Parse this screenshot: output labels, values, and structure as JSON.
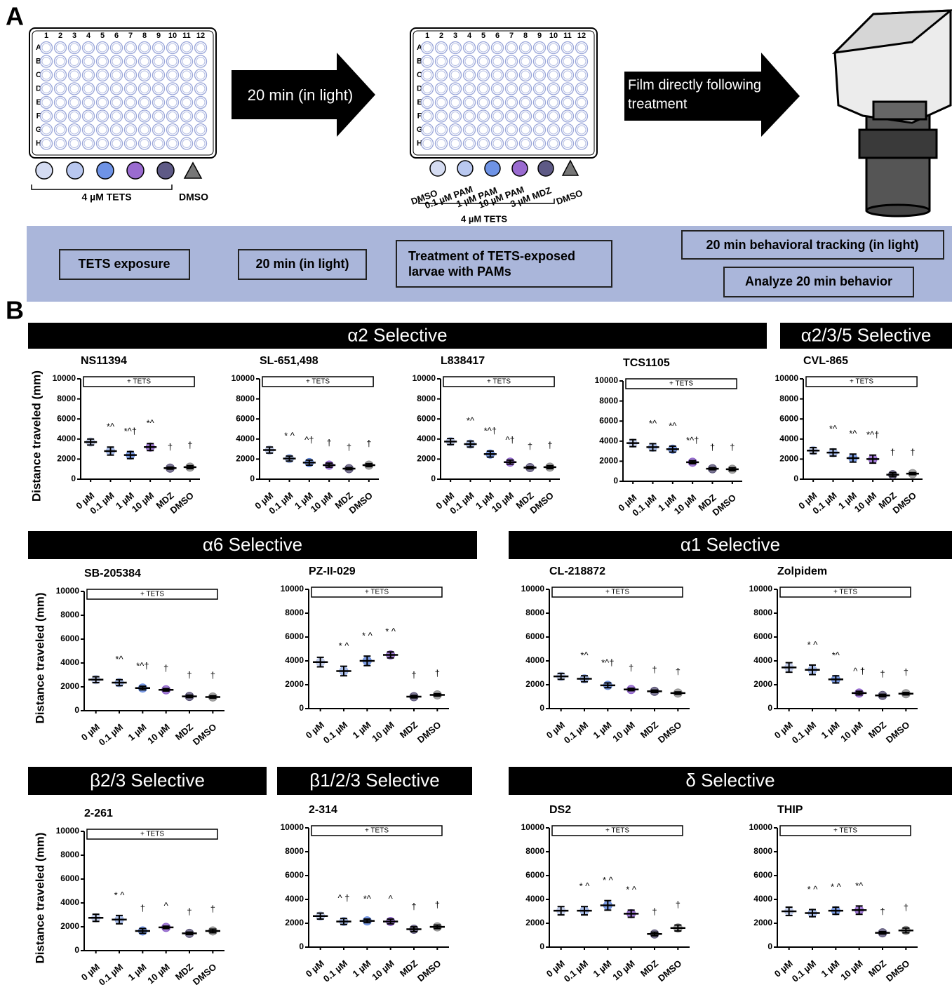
{
  "panel_a": {
    "label": "A",
    "plate_columns": [
      "1",
      "2",
      "3",
      "4",
      "5",
      "6",
      "7",
      "8",
      "9",
      "10",
      "11",
      "12"
    ],
    "plate_rows": [
      "A",
      "B",
      "C",
      "D",
      "E",
      "F",
      "G",
      "H"
    ],
    "plate1_legend": {
      "tets": "4 µM TETS",
      "dmso": "DMSO"
    },
    "arrow1": "20 min (in light)",
    "plate2_legend": {
      "wells": [
        "DMSO",
        "0.1 µM PAM",
        "1 µM PAM",
        "10 µM PAM",
        "3 µM MDZ",
        "DMSO"
      ],
      "tets": "4 µM TETS"
    },
    "arrow2": [
      "Film directly following",
      "treatment"
    ],
    "timeline": {
      "tets_exposure": "TETS exposure",
      "wait": "20 min (in light)",
      "treatment": [
        "Treatment of TETS-exposed",
        "larvae  with PAMs"
      ],
      "tracking": "20 min behavioral tracking (in light)",
      "analyze": "Analyze 20 min behavior"
    }
  },
  "panel_b": {
    "label": "B",
    "groups": [
      "α2 Selective",
      "α2/3/5 Selective",
      "α6 Selective",
      "α1 Selective",
      "β2/3 Selective",
      "β1/2/3 Selective",
      "δ Selective"
    ]
  },
  "chart_data": [
    {
      "type": "dot",
      "title": "NS11394",
      "y_label": "Distance traveled (mm)",
      "tets_label": "+ TETS",
      "categories": [
        "0 µM",
        "0.1 µM",
        "1 µM",
        "10 µM",
        "MDZ",
        "DMSO"
      ],
      "colors": [
        "#b9c6e8",
        "#97afe6",
        "#5f86dd",
        "#8b5cc9",
        "#5b5579",
        "#8f8f8f"
      ],
      "values": [
        3700,
        2800,
        2400,
        3200,
        1100,
        1200
      ],
      "errors": [
        300,
        400,
        350,
        350,
        100,
        150
      ],
      "annotations": [
        null,
        "*^",
        "*^†",
        "*^",
        "†",
        "†"
      ],
      "ylim": [
        0,
        10000
      ],
      "yticks": [
        0,
        2000,
        4000,
        6000,
        8000,
        10000
      ]
    },
    {
      "type": "dot",
      "title": "SL-651,498",
      "tets_label": "+ TETS",
      "categories": [
        "0 µM",
        "0.1 µM",
        "1 µM",
        "10 µM",
        "MDZ",
        "DMSO"
      ],
      "colors": [
        "#b9c6e8",
        "#97afe6",
        "#5f86dd",
        "#8b5cc9",
        "#5b5579",
        "#8f8f8f"
      ],
      "values": [
        2900,
        2050,
        1650,
        1400,
        1050,
        1400
      ],
      "errors": [
        300,
        250,
        250,
        200,
        100,
        150
      ],
      "annotations": [
        null,
        "* ^",
        "^†",
        "†",
        "†",
        "†"
      ],
      "ylim": [
        0,
        10000
      ],
      "yticks": [
        0,
        2000,
        4000,
        6000,
        8000,
        10000
      ]
    },
    {
      "type": "dot",
      "title": "L838417",
      "tets_label": "+ TETS",
      "categories": [
        "0 µM",
        "0.1 µM",
        "1 µM",
        "10 µM",
        "MDZ",
        "DMSO"
      ],
      "colors": [
        "#b9c6e8",
        "#97afe6",
        "#5f86dd",
        "#8b5cc9",
        "#5b5579",
        "#8f8f8f"
      ],
      "values": [
        3750,
        3500,
        2500,
        1700,
        1150,
        1200
      ],
      "errors": [
        300,
        300,
        300,
        200,
        100,
        150
      ],
      "annotations": [
        null,
        "*^",
        "*^†",
        "^†",
        "†",
        "†"
      ],
      "ylim": [
        0,
        10000
      ],
      "yticks": [
        0,
        2000,
        4000,
        6000,
        8000,
        10000
      ]
    },
    {
      "type": "dot",
      "title": "TCS1105",
      "tets_label": "+ TETS",
      "categories": [
        "0 µM",
        "0.1 µM",
        "1 µM",
        "10 µM",
        "MDZ",
        "DMSO"
      ],
      "colors": [
        "#b9c6e8",
        "#97afe6",
        "#5f86dd",
        "#8b5cc9",
        "#5b5579",
        "#8f8f8f"
      ],
      "values": [
        3800,
        3400,
        3200,
        1900,
        1250,
        1200
      ],
      "errors": [
        350,
        350,
        300,
        150,
        100,
        150
      ],
      "annotations": [
        null,
        "*^",
        "*^",
        "*^†",
        "†",
        "†"
      ],
      "ylim": [
        0,
        10000
      ],
      "yticks": [
        0,
        2000,
        4000,
        6000,
        8000,
        10000
      ]
    },
    {
      "type": "dot",
      "title": "CVL-865",
      "tets_label": "+ TETS",
      "categories": [
        "0 µM",
        "0.1 µM",
        "1 µM",
        "10 µM",
        "MDZ",
        "DMSO"
      ],
      "colors": [
        "#b9c6e8",
        "#97afe6",
        "#5f86dd",
        "#8b5cc9",
        "#5b5579",
        "#8f8f8f"
      ],
      "values": [
        2850,
        2650,
        2100,
        2000,
        450,
        550
      ],
      "errors": [
        300,
        350,
        400,
        400,
        200,
        100
      ],
      "annotations": [
        null,
        "*^",
        "*^",
        "*^†",
        "†",
        "†"
      ],
      "ylim": [
        0,
        10000
      ],
      "yticks": [
        0,
        2000,
        4000,
        6000,
        8000,
        10000
      ]
    },
    {
      "type": "dot",
      "title": "SB-205384",
      "y_label": "Distance traveled (mm)",
      "tets_label": "+ TETS",
      "categories": [
        "0 µM",
        "0.1 µM",
        "1 µM",
        "10 µM",
        "MDZ",
        "DMSO"
      ],
      "colors": [
        "#b9c6e8",
        "#97afe6",
        "#5f86dd",
        "#8b5cc9",
        "#5b5579",
        "#8f8f8f"
      ],
      "values": [
        2600,
        2350,
        1900,
        1750,
        1200,
        1150
      ],
      "errors": [
        250,
        250,
        150,
        100,
        100,
        100
      ],
      "annotations": [
        null,
        "*^",
        "*^†",
        "†",
        "†",
        "†"
      ],
      "ylim": [
        0,
        10000
      ],
      "yticks": [
        0,
        2000,
        4000,
        6000,
        8000,
        10000
      ]
    },
    {
      "type": "dot",
      "title": "PZ-II-029",
      "tets_label": "+ TETS",
      "categories": [
        "0 µM",
        "0.1 µM",
        "1 µM",
        "10 µM",
        "MDZ",
        "DMSO"
      ],
      "colors": [
        "#b9c6e8",
        "#97afe6",
        "#5f86dd",
        "#8b5cc9",
        "#5b5579",
        "#8f8f8f"
      ],
      "values": [
        3900,
        3150,
        4000,
        4500,
        1000,
        1150
      ],
      "errors": [
        400,
        400,
        400,
        250,
        100,
        100
      ],
      "annotations": [
        null,
        "* ^",
        "* ^",
        "* ^",
        "†",
        "†"
      ],
      "ylim": [
        0,
        10000
      ],
      "yticks": [
        0,
        2000,
        4000,
        6000,
        8000,
        10000
      ]
    },
    {
      "type": "dot",
      "title": "CL-218872",
      "tets_label": "+ TETS",
      "categories": [
        "0 µM",
        "0.1 µM",
        "1 µM",
        "10 µM",
        "MDZ",
        "DMSO"
      ],
      "colors": [
        "#b9c6e8",
        "#97afe6",
        "#5f86dd",
        "#8b5cc9",
        "#5b5579",
        "#8f8f8f"
      ],
      "values": [
        2700,
        2500,
        1950,
        1600,
        1450,
        1300
      ],
      "errors": [
        250,
        250,
        200,
        100,
        100,
        100
      ],
      "annotations": [
        null,
        "*^",
        "*^†",
        "†",
        "†",
        "†"
      ],
      "ylim": [
        0,
        10000
      ],
      "yticks": [
        0,
        2000,
        4000,
        6000,
        8000,
        10000
      ]
    },
    {
      "type": "dot",
      "title": "Zolpidem",
      "tets_label": "+ TETS",
      "categories": [
        "0 µM",
        "0.1 µM",
        "1 µM",
        "10 µM",
        "MDZ",
        "DMSO"
      ],
      "colors": [
        "#b9c6e8",
        "#97afe6",
        "#5f86dd",
        "#8b5cc9",
        "#5b5579",
        "#8f8f8f"
      ],
      "values": [
        3450,
        3250,
        2450,
        1300,
        1100,
        1250
      ],
      "errors": [
        400,
        400,
        300,
        150,
        100,
        100
      ],
      "annotations": [
        null,
        "* ^",
        "*^",
        "^ †",
        "†",
        "†"
      ],
      "ylim": [
        0,
        10000
      ],
      "yticks": [
        0,
        2000,
        4000,
        6000,
        8000,
        10000
      ]
    },
    {
      "type": "dot",
      "title": "2-261",
      "y_label": "Distance traveled (mm)",
      "tets_label": "+ TETS",
      "categories": [
        "0 µM",
        "0.1 µM",
        "1 µM",
        "10 µM",
        "MDZ",
        "DMSO"
      ],
      "colors": [
        "#b9c6e8",
        "#97afe6",
        "#5f86dd",
        "#8b5cc9",
        "#5b5579",
        "#8f8f8f"
      ],
      "values": [
        2750,
        2600,
        1650,
        1950,
        1450,
        1650
      ],
      "errors": [
        300,
        350,
        200,
        100,
        100,
        150
      ],
      "annotations": [
        null,
        "* ^",
        "†",
        "^",
        "†",
        "†"
      ],
      "ylim": [
        0,
        10000
      ],
      "yticks": [
        0,
        2000,
        4000,
        6000,
        8000,
        10000
      ]
    },
    {
      "type": "dot",
      "title": "2-314",
      "tets_label": "+ TETS",
      "categories": [
        "0 µM",
        "0.1 µM",
        "1 µM",
        "10 µM",
        "MDZ",
        "DMSO"
      ],
      "colors": [
        "#b9c6e8",
        "#97afe6",
        "#5f86dd",
        "#8b5cc9",
        "#5b5579",
        "#8f8f8f"
      ],
      "values": [
        2600,
        2150,
        2200,
        2150,
        1500,
        1700
      ],
      "errors": [
        250,
        250,
        150,
        200,
        200,
        150
      ],
      "annotations": [
        null,
        "^ †",
        "*^",
        "^",
        "†",
        "†"
      ],
      "ylim": [
        0,
        10000
      ],
      "yticks": [
        0,
        2000,
        4000,
        6000,
        8000,
        10000
      ]
    },
    {
      "type": "dot",
      "title": "DS2",
      "tets_label": "+ TETS",
      "categories": [
        "0 µM",
        "0.1 µM",
        "1 µM",
        "10 µM",
        "MDZ",
        "DMSO"
      ],
      "colors": [
        "#b9c6e8",
        "#97afe6",
        "#5f86dd",
        "#8b5cc9",
        "#5b5579",
        "#8f8f8f"
      ],
      "values": [
        3050,
        3050,
        3500,
        2800,
        1100,
        1600
      ],
      "errors": [
        350,
        350,
        400,
        300,
        150,
        250
      ],
      "annotations": [
        null,
        "* ^",
        "* ^",
        "* ^",
        "†",
        "†"
      ],
      "ylim": [
        0,
        10000
      ],
      "yticks": [
        0,
        2000,
        4000,
        6000,
        8000,
        10000
      ]
    },
    {
      "type": "dot",
      "title": "THIP",
      "tets_label": "+ TETS",
      "categories": [
        "0 µM",
        "0.1 µM",
        "1 µM",
        "10 µM",
        "MDZ",
        "DMSO"
      ],
      "colors": [
        "#b9c6e8",
        "#97afe6",
        "#5f86dd",
        "#8b5cc9",
        "#5b5579",
        "#8f8f8f"
      ],
      "values": [
        3000,
        2850,
        3050,
        3100,
        1200,
        1400
      ],
      "errors": [
        350,
        300,
        300,
        350,
        100,
        200
      ],
      "annotations": [
        null,
        "* ^",
        "* ^",
        "*^",
        "†",
        "†"
      ],
      "ylim": [
        0,
        10000
      ],
      "yticks": [
        0,
        2000,
        4000,
        6000,
        8000,
        10000
      ]
    }
  ]
}
